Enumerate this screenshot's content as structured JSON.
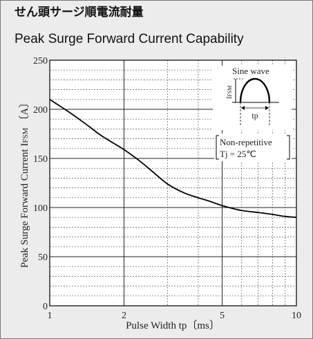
{
  "titles": {
    "japanese": "せん頭サージ順電流耐量",
    "english": "Peak Surge Forward Current Capability"
  },
  "chart_data": {
    "type": "line",
    "xscale": "log",
    "xlim": [
      1,
      10
    ],
    "ylim": [
      0,
      250
    ],
    "grid": true,
    "xlabel": "Pulse Width  tp〔ms〕",
    "ylabel": "Peak Surge Forward Current  I",
    "ylabel_sub": "FSM",
    "ylabel_unit": "〔A〕",
    "x_ticks": [
      1,
      2,
      5,
      10
    ],
    "x_tick_labels": [
      "1",
      "2",
      "5",
      "10"
    ],
    "y_ticks": [
      0,
      50,
      100,
      150,
      200,
      250
    ],
    "y_tick_labels": [
      "0",
      "50",
      "100",
      "150",
      "200",
      "250"
    ],
    "series": [
      {
        "x": [
          1.0,
          1.2,
          1.4,
          1.6,
          1.8,
          2.0,
          2.3,
          2.6,
          3.0,
          3.5,
          4.0,
          4.5,
          5.0,
          6.0,
          7.0,
          8.0,
          9.0,
          10.0
        ],
        "y": [
          210,
          197,
          185,
          174,
          166,
          159,
          148,
          137,
          124,
          115,
          110,
          106,
          102,
          97,
          95,
          93,
          91,
          90
        ]
      }
    ],
    "annotations": {
      "waveform_label": "Sine wave",
      "waveform_amp": "I",
      "waveform_amp_sub": "FSM",
      "waveform_width": "tp",
      "condition_1": "Non-repetitive",
      "condition_2": "Tj = 25℃"
    },
    "colors": {
      "curve": "#000000",
      "grid_major": "#222222",
      "grid_minor": "#555555",
      "plot_bg": "#ffffff"
    }
  }
}
